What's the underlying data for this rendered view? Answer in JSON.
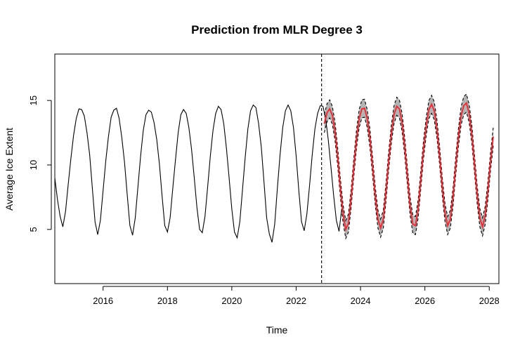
{
  "chart_data": {
    "type": "line",
    "title": "Prediction from MLR Degree 3",
    "xlabel": "Time",
    "ylabel": "Average Ice Extent",
    "xlim": [
      2014.5,
      2028.3
    ],
    "ylim": [
      0.8,
      18.6
    ],
    "grid": false,
    "x_ticks": [
      2016,
      2018,
      2020,
      2022,
      2024,
      2026,
      2028
    ],
    "x_tick_labels": [
      "2016",
      "2018",
      "2020",
      "2022",
      "2024",
      "2026",
      "2028"
    ],
    "y_ticks": [
      5,
      10,
      15
    ],
    "y_tick_labels": [
      "5",
      "10",
      "15"
    ],
    "forecast_start": 2022.79,
    "colors": {
      "observed": "#000000",
      "prediction": "#e8303a",
      "interval_fill": "#b3b3b3",
      "interval_bounds": "#000000",
      "divider": "#000000"
    },
    "series": [
      {
        "role": "observed",
        "x_start": 2014.5,
        "step": 0.08333,
        "values": [
          9.0,
          7.3,
          6.0,
          5.2,
          6.4,
          8.5,
          10.5,
          12.3,
          13.6,
          14.35,
          14.3,
          13.8,
          12.5,
          10.8,
          8.2,
          5.6,
          4.6,
          5.7,
          8.0,
          10.3,
          12.2,
          13.7,
          14.25,
          14.4,
          13.6,
          12.1,
          10.2,
          7.7,
          5.3,
          4.55,
          5.9,
          8.3,
          10.7,
          12.7,
          13.9,
          14.25,
          14.1,
          13.3,
          12.0,
          10.1,
          7.6,
          5.3,
          4.8,
          5.9,
          8.2,
          10.4,
          12.5,
          13.9,
          14.3,
          14.0,
          12.9,
          11.2,
          9.0,
          6.7,
          5.0,
          4.75,
          6.0,
          8.3,
          10.7,
          12.7,
          14.0,
          14.55,
          14.3,
          13.2,
          11.3,
          9.0,
          6.6,
          4.8,
          4.35,
          5.6,
          8.1,
          10.6,
          12.8,
          14.2,
          14.65,
          14.45,
          13.2,
          11.4,
          8.7,
          5.9,
          4.65,
          4.0,
          5.4,
          8.2,
          10.8,
          12.9,
          14.2,
          14.65,
          14.2,
          12.9,
          10.7,
          8.0,
          5.6,
          4.9,
          6.2,
          8.4,
          10.8,
          12.8,
          14.0,
          14.6,
          14.55,
          13.6,
          11.9,
          9.8,
          7.6,
          5.7,
          4.85,
          6.6
        ]
      },
      {
        "role": "prediction",
        "x_start": 2022.875,
        "step": 0.08333,
        "values": [
          13.2,
          14.05,
          14.35,
          13.85,
          12.6,
          10.6,
          8.2,
          6.2,
          5.0,
          5.5,
          7.4,
          9.8,
          12.0,
          13.6,
          14.35,
          14.4,
          13.6,
          12.1,
          9.9,
          7.6,
          5.8,
          5.1,
          5.8,
          7.9,
          10.3,
          12.4,
          13.9,
          14.55,
          14.35,
          13.3,
          11.4,
          9.1,
          6.8,
          5.4,
          5.3,
          6.6,
          8.9,
          11.2,
          13.0,
          14.3,
          14.7,
          14.2,
          12.8,
          10.7,
          8.3,
          6.3,
          5.3,
          5.8,
          7.5,
          9.9,
          12.1,
          13.8,
          14.6,
          14.8,
          14.0,
          12.4,
          10.1,
          7.7,
          5.9,
          5.2,
          6.1,
          8.0,
          10.3,
          12.2
        ]
      }
    ],
    "interval_halfwidth": 0.7
  }
}
